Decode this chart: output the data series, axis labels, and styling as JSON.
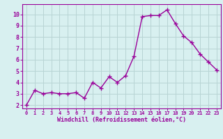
{
  "x": [
    0,
    1,
    2,
    3,
    4,
    5,
    6,
    7,
    8,
    9,
    10,
    11,
    12,
    13,
    14,
    15,
    16,
    17,
    18,
    19,
    20,
    21,
    22,
    23
  ],
  "y": [
    2.0,
    3.3,
    3.0,
    3.1,
    3.0,
    3.0,
    3.1,
    2.6,
    4.0,
    3.5,
    4.5,
    4.0,
    4.6,
    6.3,
    9.8,
    9.9,
    9.9,
    10.4,
    9.2,
    8.1,
    7.5,
    6.5,
    5.8,
    5.1
  ],
  "line_color": "#990099",
  "marker": "+",
  "marker_size": 4,
  "linewidth": 1.0,
  "bg_color": "#d8f0f0",
  "grid_color": "#b8d4d4",
  "xlabel": "Windchill (Refroidissement éolien,°C)",
  "xlabel_color": "#990099",
  "yticks": [
    2,
    3,
    4,
    5,
    6,
    7,
    8,
    9,
    10
  ],
  "xlim": [
    -0.5,
    23.5
  ],
  "ylim": [
    1.7,
    10.9
  ],
  "tick_color": "#990099",
  "axis_color": "#990099",
  "xlabel_fontsize": 6.0,
  "ytick_fontsize": 6.0,
  "xtick_fontsize": 5.0
}
